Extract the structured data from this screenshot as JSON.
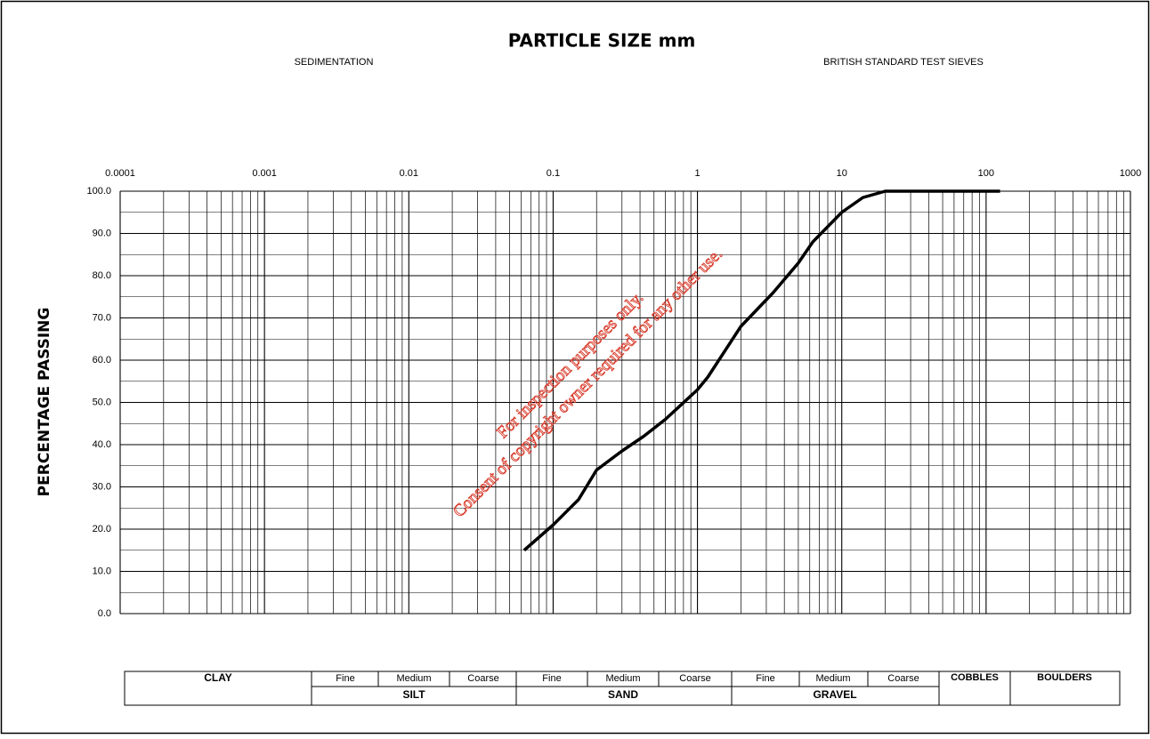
{
  "chart_data": {
    "type": "line",
    "title": "PARTICLE SIZE mm",
    "subtitles": [
      "SEDIMENTATION",
      "BRITISH STANDARD TEST SIEVES"
    ],
    "y_label": "PERCENTAGE PASSING",
    "x_scale": "log",
    "grid": true,
    "xlim": [
      0.0001,
      1000
    ],
    "xticks": [
      0.0001,
      0.001,
      0.01,
      0.1,
      1,
      10,
      100,
      1000
    ],
    "ylim": [
      0,
      100
    ],
    "yticks": [
      {
        "value": 0,
        "label": "0.0"
      },
      {
        "value": 10,
        "label": "10.0"
      },
      {
        "value": 20,
        "label": "20.0"
      },
      {
        "value": 30,
        "label": "30.0"
      },
      {
        "value": 40,
        "label": "40.0"
      },
      {
        "value": 50,
        "label": "50.0"
      },
      {
        "value": 60,
        "label": "60.0"
      },
      {
        "value": 70,
        "label": "70.0"
      },
      {
        "value": 80,
        "label": "80.0"
      },
      {
        "value": 90,
        "label": "90.0"
      },
      {
        "value": 100,
        "label": "100.0"
      }
    ],
    "x": [
      0.063,
      0.1,
      0.15,
      0.2,
      0.3,
      0.425,
      0.6,
      1,
      1.18,
      2,
      3.35,
      5,
      6.3,
      10,
      14,
      20,
      37.5,
      50,
      63,
      125
    ],
    "series": [
      {
        "color": "#000000",
        "values": [
          15,
          21,
          27,
          34,
          38.5,
          42,
          46,
          53,
          56,
          68,
          76,
          83,
          88,
          95,
          98.5,
          100,
          100,
          100,
          100,
          100
        ]
      }
    ],
    "watermark": [
      "For inspection purposes only.",
      "Consent of copyright owner required for any other use."
    ]
  },
  "classification": {
    "clay": "CLAY",
    "silt": {
      "name": "SILT",
      "parts": [
        "Fine",
        "Medium",
        "Coarse"
      ]
    },
    "sand": {
      "name": "SAND",
      "parts": [
        "Fine",
        "Medium",
        "Coarse"
      ]
    },
    "gravel": {
      "name": "GRAVEL",
      "parts": [
        "Fine",
        "Medium",
        "Coarse"
      ]
    },
    "cobbles": "COBBLES",
    "boulders": "BOULDERS"
  }
}
